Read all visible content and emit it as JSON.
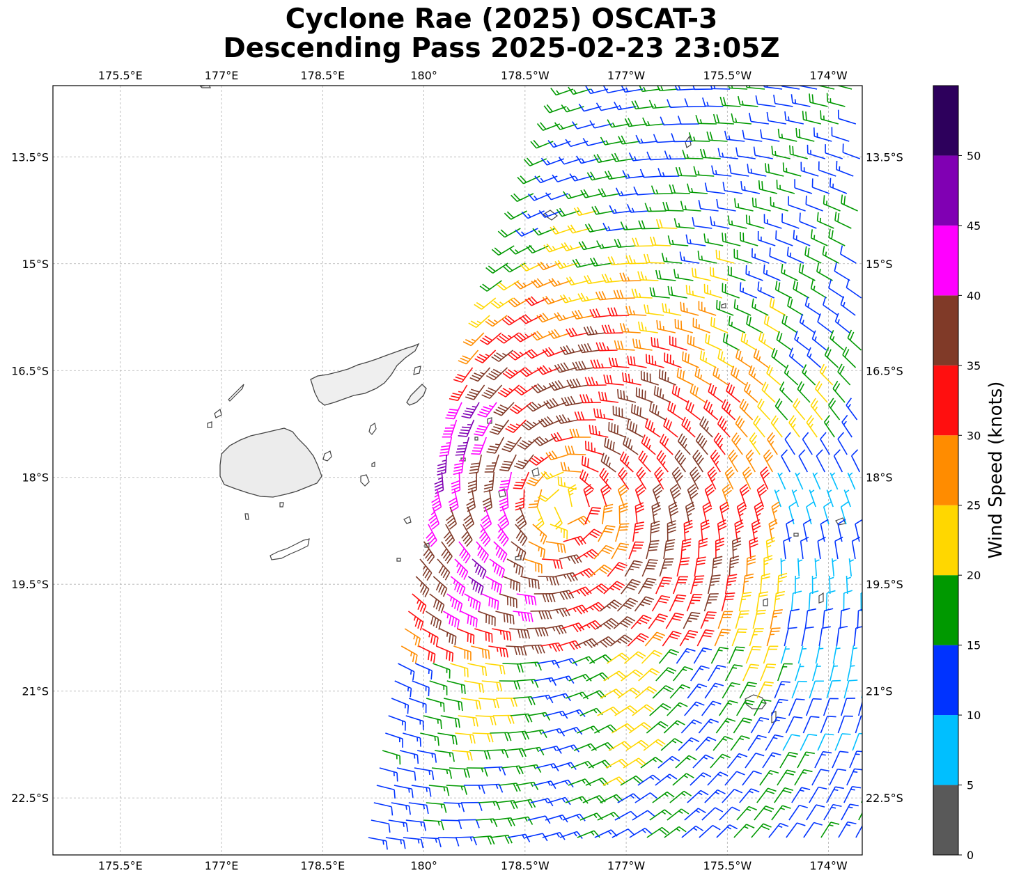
{
  "title": {
    "line1": "Cyclone Rae (2025) OSCAT-3",
    "line2": "Descending Pass 2025-02-23 23:05Z"
  },
  "map": {
    "lon_range": [
      174.5,
      186.5
    ],
    "lat_range": [
      -23.3,
      -12.5
    ],
    "lon_ticks": [
      {
        "lon": 175.5,
        "label": "175.5°E"
      },
      {
        "lon": 177.0,
        "label": "177°E"
      },
      {
        "lon": 178.5,
        "label": "178.5°E"
      },
      {
        "lon": 180.0,
        "label": "180°"
      },
      {
        "lon": 181.5,
        "label": "178.5°W"
      },
      {
        "lon": 183.0,
        "label": "177°W"
      },
      {
        "lon": 184.5,
        "label": "175.5°W"
      },
      {
        "lon": 186.0,
        "label": "174°W"
      }
    ],
    "lat_ticks": [
      {
        "lat": -13.5,
        "label": "13.5°S"
      },
      {
        "lat": -15.0,
        "label": "15°S"
      },
      {
        "lat": -16.5,
        "label": "16.5°S"
      },
      {
        "lat": -18.0,
        "label": "18°S"
      },
      {
        "lat": -19.5,
        "label": "19.5°S"
      },
      {
        "lat": -21.0,
        "label": "21°S"
      },
      {
        "lat": -22.5,
        "label": "22.5°S"
      }
    ],
    "gridlines": true,
    "land_outline_color": "#444444",
    "storm_center": {
      "lon": 182.1,
      "lat": -18.4
    }
  },
  "colorbar": {
    "label": "Wind Speed (knots)",
    "bins": [
      {
        "from": 0,
        "to": 5,
        "color": "#595959"
      },
      {
        "from": 5,
        "to": 10,
        "color": "#00bfff"
      },
      {
        "from": 10,
        "to": 15,
        "color": "#0033ff"
      },
      {
        "from": 15,
        "to": 20,
        "color": "#009900"
      },
      {
        "from": 20,
        "to": 25,
        "color": "#ffd700"
      },
      {
        "from": 25,
        "to": 30,
        "color": "#ff8c00"
      },
      {
        "from": 30,
        "to": 35,
        "color": "#ff0f0f"
      },
      {
        "from": 35,
        "to": 40,
        "color": "#803a28"
      },
      {
        "from": 40,
        "to": 45,
        "color": "#ff00ff"
      },
      {
        "from": 45,
        "to": 50,
        "color": "#8000b3"
      },
      {
        "from": 50,
        "to": 55,
        "color": "#2d005c"
      }
    ],
    "tick_labels": [
      "0",
      "5",
      "10",
      "15",
      "20",
      "25",
      "30",
      "35",
      "40",
      "45",
      "50"
    ],
    "tick_values": [
      0,
      5,
      10,
      15,
      20,
      25,
      30,
      35,
      40,
      45,
      50
    ]
  }
}
